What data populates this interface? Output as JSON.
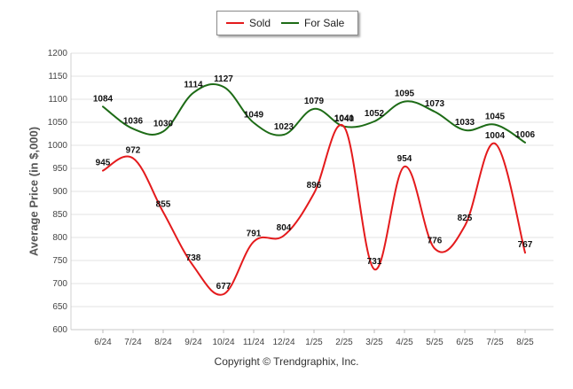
{
  "chart_data": {
    "type": "line",
    "ylabel": "Average Price (in $,000)",
    "xlabel": "",
    "categories": [
      "6/24",
      "7/24",
      "8/24",
      "9/24",
      "10/24",
      "11/24",
      "12/24",
      "1/25",
      "2/25",
      "3/25",
      "4/25",
      "5/25",
      "6/25",
      "7/25",
      "8/25"
    ],
    "y_ticks": [
      "600",
      "650",
      "700",
      "750",
      "800",
      "850",
      "900",
      "950",
      "1000",
      "1050",
      "1100",
      "1150",
      "1200"
    ],
    "ylim": [
      600,
      1200
    ],
    "grid": true,
    "legend_position": "top-center",
    "series": [
      {
        "name": "Sold",
        "color": "#e41a1c",
        "values": [
          945,
          972,
          855,
          738,
          677,
          791,
          804,
          896,
          1040,
          731,
          954,
          776,
          825,
          1004,
          767
        ],
        "labels": [
          "945",
          "972",
          "855",
          "738",
          "677",
          "791",
          "804",
          "896",
          "1040",
          "731",
          "954",
          "776",
          "825",
          "1004",
          "767"
        ]
      },
      {
        "name": "For Sale",
        "color": "#1d6b16",
        "values": [
          1084,
          1036,
          1030,
          1114,
          1127,
          1049,
          1023,
          1079,
          1041,
          1052,
          1095,
          1073,
          1033,
          1045,
          1006
        ],
        "labels": [
          "1084",
          "1036",
          "1030",
          "1114",
          "1127",
          "1049",
          "1023",
          "1079",
          "1041",
          "1052",
          "1095",
          "1073",
          "1033",
          "1045",
          "1006"
        ]
      }
    ]
  },
  "footer": {
    "copyright": "Copyright © Trendgraphix, Inc."
  }
}
